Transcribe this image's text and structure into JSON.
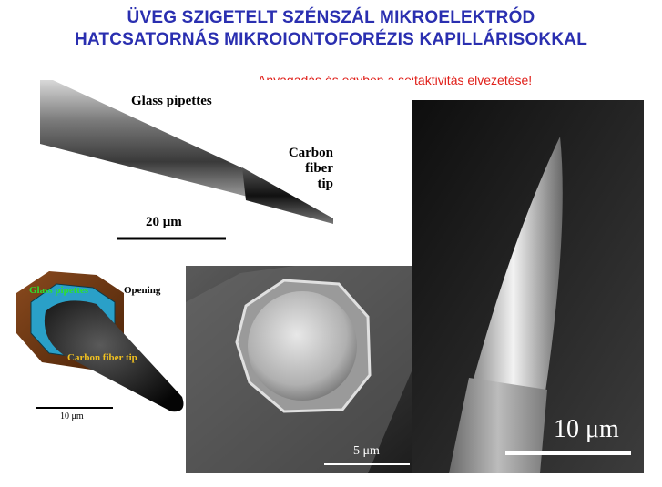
{
  "title": {
    "line1": "ÜVEG SZIGETELT SZÉNSZÁL MIKROELEKTRÓD",
    "line2": "HATCSATORNÁS MIKROIONTOFORÉZIS KAPILLÁRISOKKAL"
  },
  "subtitle": "Anyagadás és egyben a sejtaktivitás elvezetése!",
  "panel_pipette": {
    "label_glass": "Glass pipettes",
    "label_carbon": [
      "Carbon",
      "fiber",
      "tip"
    ],
    "scale": "20 μm"
  },
  "panel_diagram": {
    "label_glass": "Glass pipettes",
    "label_opening": "Opening",
    "label_carbon": "Carbon fiber tip",
    "scale": "10 μm"
  },
  "panel_cross_section": {
    "scale": "5 μm"
  },
  "panel_tip_sem": {
    "scale": "10 μm"
  }
}
